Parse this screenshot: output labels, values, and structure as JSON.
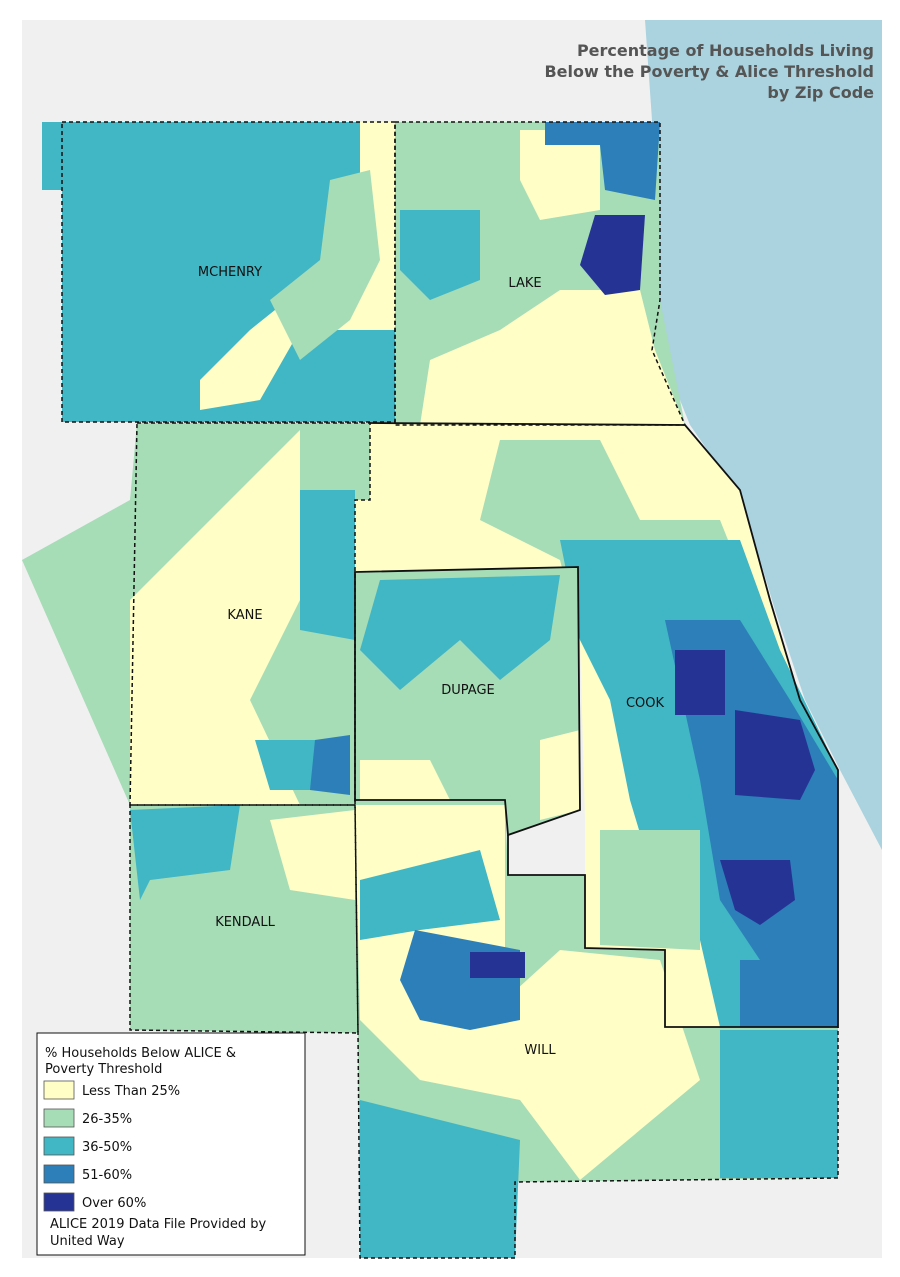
{
  "title_lines": [
    "Percentage of Households Living",
    "Below the Poverty & Alice Threshold",
    "by Zip Code"
  ],
  "county_labels": [
    "MCHENRY",
    "LAKE",
    "KANE",
    "DUPAGE",
    "COOK",
    "KENDALL",
    "WILL"
  ],
  "legend": {
    "title_lines": [
      "% Households Below ALICE &",
      "Poverty Threshold"
    ],
    "items": [
      {
        "label": "Less Than 25%",
        "color": "#fefec6"
      },
      {
        "label": "26-35%",
        "color": "#a6dcb6"
      },
      {
        "label": "36-50%",
        "color": "#41b6c4"
      },
      {
        "label": "51-60%",
        "color": "#2c7fb8"
      },
      {
        "label": "Over 60%",
        "color": "#253494"
      }
    ]
  },
  "source_lines": [
    "ALICE 2019 Data File Provided by",
    "United Way"
  ]
}
